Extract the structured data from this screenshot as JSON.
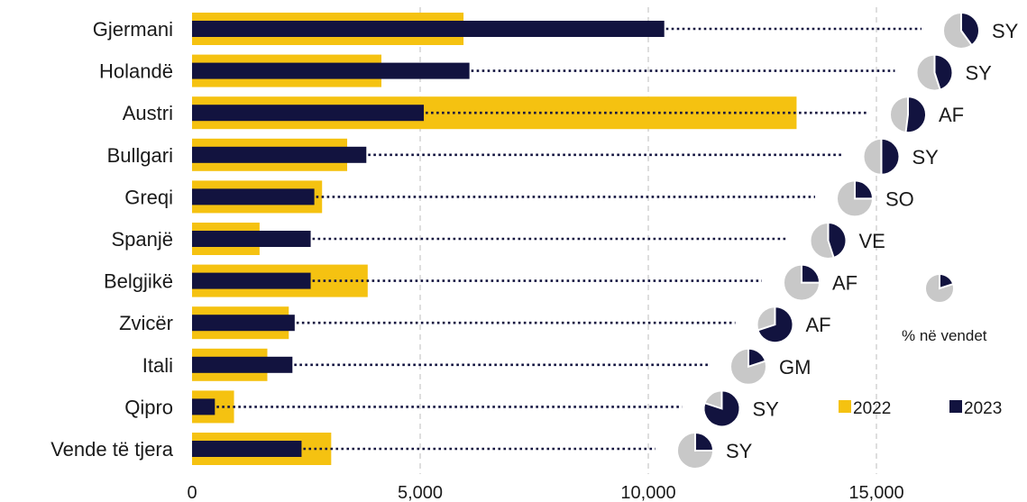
{
  "chart_data": {
    "type": "bar",
    "orientation": "horizontal",
    "categories": [
      "Gjermani",
      "Holandë",
      "Austri",
      "Bullgari",
      "Greqi",
      "Spanjë",
      "Belgjikë",
      "Zvicër",
      "Itali",
      "Qipro",
      "Vende të tjera"
    ],
    "series": [
      {
        "name": "2022",
        "values": [
          5950,
          4150,
          13250,
          3400,
          2850,
          1480,
          3850,
          2120,
          1650,
          920,
          3050
        ]
      },
      {
        "name": "2023",
        "values": [
          10350,
          6080,
          5080,
          3820,
          2680,
          2600,
          2600,
          2250,
          2200,
          500,
          2400
        ]
      }
    ],
    "xlim": [
      0,
      18000
    ],
    "xticks": [
      0,
      5000,
      10000,
      15000
    ],
    "xtick_labels": [
      "0",
      "5,000",
      "10,000",
      "15,000"
    ],
    "top_country_codes": [
      "SY",
      "SY",
      "AF",
      "SY",
      "SO",
      "VE",
      "AF",
      "AF",
      "GM",
      "SY",
      "SY"
    ],
    "top_country_share_pct": [
      40,
      45,
      52,
      50,
      25,
      45,
      25,
      70,
      20,
      80,
      25
    ],
    "pie_note": "% në vendet",
    "grid": "vertical dashed",
    "legend": "bottom-right",
    "colors": {
      "2022": "#F5C211",
      "2023": "#12133F",
      "pie_rest": "#C8C8C8",
      "pie_border": "#ffffff",
      "leader": "#12133F",
      "grid": "#C8C8C8"
    }
  }
}
